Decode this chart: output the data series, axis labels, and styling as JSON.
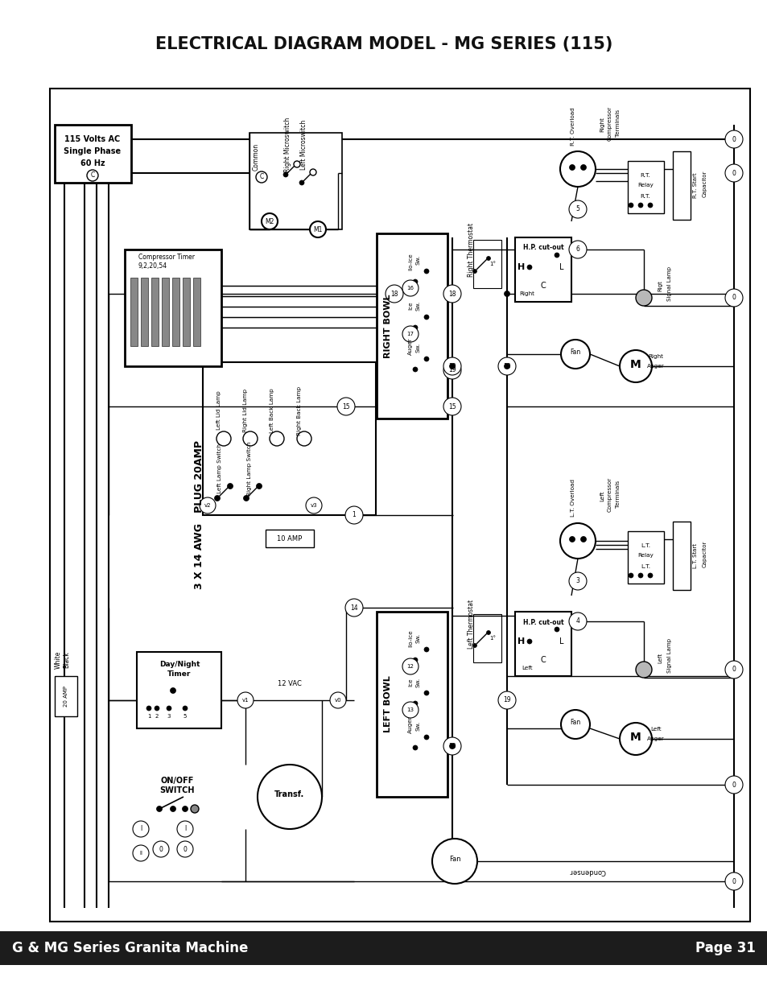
{
  "title": "ELECTRICAL DIAGRAM MODEL - MG SERIES (115)",
  "footer_left": "G & MG Series Granita Machine",
  "footer_right": "Page 31",
  "bg_color": "#ffffff",
  "footer_bg": "#1c1c1c",
  "footer_text_color": "#ffffff",
  "title_fontsize": 15,
  "footer_fontsize": 12,
  "line_color": "#000000"
}
